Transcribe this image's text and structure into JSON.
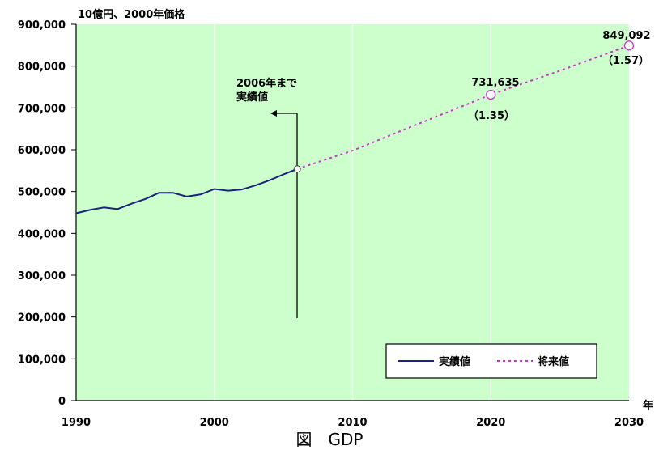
{
  "chart_data": {
    "type": "line",
    "ylabel": "10億円、2000年価格",
    "xlabel": "年",
    "xlim": [
      1990,
      2030
    ],
    "ylim": [
      0,
      900000
    ],
    "x_ticks": [
      "1990",
      "2000",
      "2010",
      "2020",
      "2030"
    ],
    "y_ticks": [
      "0",
      "100,000",
      "200,000",
      "300,000",
      "400,000",
      "500,000",
      "600,000",
      "700,000",
      "800,000",
      "900,000"
    ],
    "grid": true,
    "legend_position": "bottom-right",
    "series": [
      {
        "name": "実績値",
        "style": "solid",
        "color": "#1a237e",
        "points": [
          [
            1990,
            448000
          ],
          [
            1991,
            456000
          ],
          [
            1992,
            462000
          ],
          [
            1993,
            458000
          ],
          [
            1994,
            471000
          ],
          [
            1995,
            482000
          ],
          [
            1996,
            497000
          ],
          [
            1997,
            497000
          ],
          [
            1998,
            488000
          ],
          [
            1999,
            493000
          ],
          [
            2000,
            506000
          ],
          [
            2001,
            502000
          ],
          [
            2002,
            505000
          ],
          [
            2003,
            515000
          ],
          [
            2004,
            527000
          ],
          [
            2005,
            541000
          ],
          [
            2006,
            554000
          ]
        ]
      },
      {
        "name": "将来値",
        "style": "dotted",
        "color": "#cc33cc",
        "points": [
          [
            2006,
            554000
          ],
          [
            2010,
            598000
          ],
          [
            2015,
            665000
          ],
          [
            2020,
            731635
          ],
          [
            2025,
            789000
          ],
          [
            2030,
            849092
          ]
        ]
      }
    ],
    "annotations": {
      "cutoff_label_line1": "2006年まで",
      "cutoff_label_line2": "実績値",
      "point_2020_value": "731,635",
      "point_2020_ratio": "（1.35）",
      "point_2030_value": "849,092",
      "point_2030_ratio": "（1.57）"
    }
  },
  "caption": "図　GDP"
}
